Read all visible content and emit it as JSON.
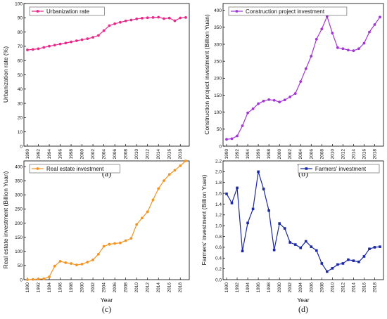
{
  "chart_data": [
    {
      "panel_label": "(a)",
      "type": "line",
      "color": "#e8288a",
      "marker": "circle",
      "xlabel": "Year",
      "ylabel": "Urbanization rate (%)",
      "legend": "Urbanization rate",
      "ylim": [
        0,
        100
      ],
      "yticks": [
        0,
        10,
        20,
        30,
        40,
        50,
        60,
        70,
        80,
        90,
        100
      ],
      "xlim": [
        1990,
        2019
      ],
      "xticks": [
        1990,
        1992,
        1994,
        1996,
        1998,
        2000,
        2002,
        2004,
        2006,
        2008,
        2010,
        2012,
        2014,
        2016,
        2018
      ],
      "x": [
        1990,
        1991,
        1992,
        1993,
        1994,
        1995,
        1996,
        1997,
        1998,
        1999,
        2000,
        2001,
        2002,
        2003,
        2004,
        2005,
        2006,
        2007,
        2008,
        2009,
        2010,
        2011,
        2012,
        2013,
        2014,
        2015,
        2016,
        2017,
        2018,
        2019
      ],
      "values": [
        67.5,
        67.8,
        68.3,
        69.2,
        70.1,
        70.8,
        71.6,
        72.3,
        73.1,
        73.9,
        74.6,
        75.3,
        76.3,
        77.6,
        81.0,
        84.5,
        85.8,
        86.8,
        87.8,
        88.4,
        89.2,
        89.7,
        90.0,
        90.2,
        90.4,
        89.4,
        89.8,
        87.9,
        89.9,
        90.2
      ],
      "legend_pos": "top-left"
    },
    {
      "panel_label": "(b)",
      "type": "line",
      "color": "#a335d6",
      "marker": "circle",
      "xlabel": "Year",
      "ylabel": "Construction project investment (Billion Yuan)",
      "legend": "Construction project investment",
      "ylim": [
        0,
        420
      ],
      "yticks": [
        0,
        50,
        100,
        150,
        200,
        250,
        300,
        350,
        400
      ],
      "xlim": [
        1990,
        2019
      ],
      "xticks": [
        1990,
        1992,
        1994,
        1996,
        1998,
        2000,
        2002,
        2004,
        2006,
        2008,
        2010,
        2012,
        2014,
        2016,
        2018
      ],
      "x": [
        1990,
        1991,
        1992,
        1993,
        1994,
        1995,
        1996,
        1997,
        1998,
        1999,
        2000,
        2001,
        2002,
        2003,
        2004,
        2005,
        2006,
        2007,
        2008,
        2009,
        2010,
        2011,
        2012,
        2013,
        2014,
        2015,
        2016,
        2017,
        2018,
        2019
      ],
      "values": [
        20,
        22,
        30,
        60,
        98,
        110,
        125,
        133,
        137,
        135,
        130,
        136,
        145,
        155,
        190,
        228,
        265,
        315,
        345,
        382,
        333,
        290,
        287,
        283,
        281,
        287,
        303,
        336,
        358,
        380
      ],
      "legend_pos": "top-left"
    },
    {
      "panel_label": "(c)",
      "type": "line",
      "color": "#f39420",
      "marker": "circle",
      "xlabel": "Year",
      "ylabel": "Real estate investment (Billion Yuan)",
      "legend": "Real estate investment",
      "ylim": [
        0,
        420
      ],
      "yticks": [
        0,
        50,
        100,
        150,
        200,
        250,
        300,
        350,
        400
      ],
      "xlim": [
        1990,
        2019
      ],
      "xticks": [
        1990,
        1992,
        1994,
        1996,
        1998,
        2000,
        2002,
        2004,
        2006,
        2008,
        2010,
        2012,
        2014,
        2016,
        2018
      ],
      "x": [
        1990,
        1991,
        1992,
        1993,
        1994,
        1995,
        1996,
        1997,
        1998,
        1999,
        2000,
        2001,
        2002,
        2003,
        2004,
        2005,
        2006,
        2007,
        2008,
        2009,
        2010,
        2011,
        2012,
        2013,
        2014,
        2015,
        2016,
        2017,
        2018,
        2019
      ],
      "values": [
        0,
        1,
        2,
        3,
        10,
        48,
        65,
        60,
        57,
        52,
        55,
        62,
        70,
        90,
        118,
        125,
        128,
        130,
        138,
        146,
        195,
        218,
        240,
        282,
        322,
        350,
        372,
        387,
        403,
        420
      ],
      "legend_pos": "top-left"
    },
    {
      "panel_label": "(d)",
      "type": "line",
      "color": "#1a28a8",
      "marker": "square",
      "xlabel": "Year",
      "ylabel": "Farmers' investment (Billion Yuan)",
      "legend": "Farmers' investment",
      "ylim": [
        0,
        2.2
      ],
      "yticks": [
        0.0,
        0.2,
        0.4,
        0.6,
        0.8,
        1.0,
        1.2,
        1.4,
        1.6,
        1.8,
        2.0,
        2.2
      ],
      "ytick_labels": [
        "0.0",
        "0.2",
        "0.4",
        "0.6",
        "0.8",
        "1.0",
        "1.2",
        "1.4",
        "1.6",
        "1.8",
        "2.0",
        "2.2"
      ],
      "xlim": [
        1990,
        2019
      ],
      "xticks": [
        1990,
        1992,
        1994,
        1996,
        1998,
        2000,
        2002,
        2004,
        2006,
        2008,
        2010,
        2012,
        2014,
        2016,
        2018
      ],
      "x": [
        1990,
        1991,
        1992,
        1993,
        1994,
        1995,
        1996,
        1997,
        1998,
        1999,
        2000,
        2001,
        2002,
        2003,
        2004,
        2005,
        2006,
        2007,
        2008,
        2009,
        2010,
        2011,
        2012,
        2013,
        2014,
        2015,
        2016,
        2017,
        2018,
        2019
      ],
      "values": [
        1.59,
        1.42,
        1.7,
        0.53,
        1.05,
        1.31,
        2.0,
        1.68,
        1.28,
        0.55,
        1.04,
        0.95,
        0.69,
        0.65,
        0.59,
        0.71,
        0.61,
        0.54,
        0.3,
        0.15,
        0.21,
        0.28,
        0.3,
        0.37,
        0.35,
        0.33,
        0.43,
        0.57,
        0.6,
        0.61
      ],
      "legend_pos": "top-right"
    }
  ]
}
